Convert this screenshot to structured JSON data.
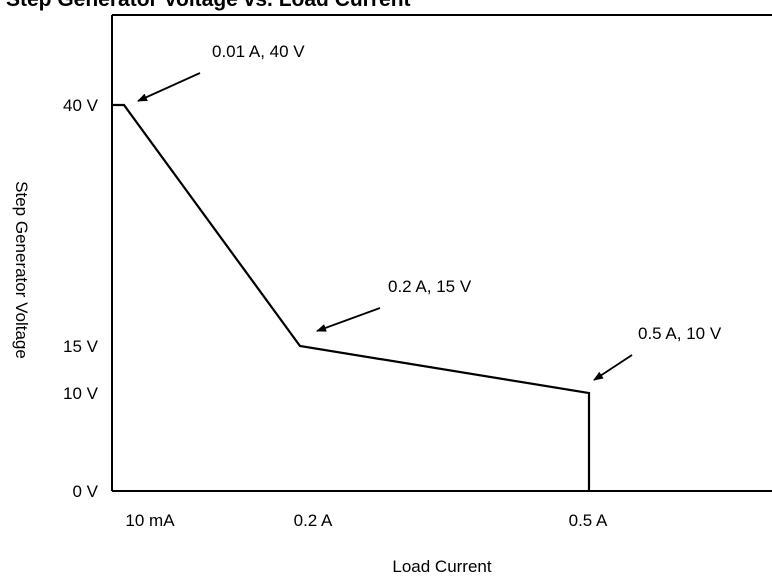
{
  "chart_data": {
    "type": "line",
    "title": "Step Generator Voltage vs. Load Current",
    "xlabel": "Load Current",
    "ylabel": "Step Generator Voltage",
    "x_ticks": [
      {
        "value": 0.01,
        "label": "10 mA"
      },
      {
        "value": 0.2,
        "label": "0.2 A"
      },
      {
        "value": 0.5,
        "label": "0.5 A"
      }
    ],
    "y_ticks": [
      {
        "value": 0,
        "label": "0 V"
      },
      {
        "value": 10,
        "label": "10 V"
      },
      {
        "value": 15,
        "label": "15 V"
      },
      {
        "value": 40,
        "label": "40 V"
      }
    ],
    "series": [
      {
        "x": [
          0,
          0.01,
          0.2,
          0.5,
          0.5
        ],
        "y": [
          40,
          40,
          15,
          10,
          0
        ]
      }
    ],
    "annotations": [
      {
        "label": "0.01 A, 40 V",
        "x": 0.01,
        "y": 40
      },
      {
        "label": "0.2 A, 15 V",
        "x": 0.2,
        "y": 15
      },
      {
        "label": "0.5 A, 10 V",
        "x": 0.5,
        "y": 10
      }
    ],
    "grid": false,
    "line_color": "#000000"
  }
}
